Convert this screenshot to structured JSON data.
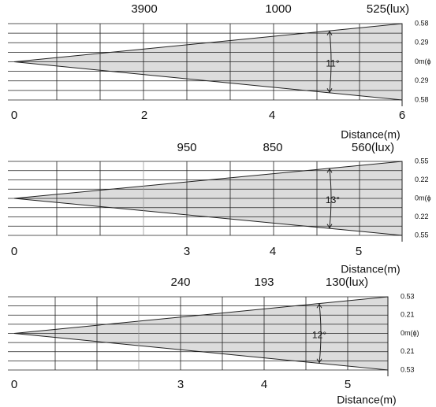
{
  "panels": [
    {
      "lux_labels": [
        "3900",
        "1000",
        "525(lux)"
      ],
      "side_labels": [
        "0.58",
        "0.29",
        "0m(ϕ",
        "0.29",
        "0.58"
      ],
      "distance_ticks": [
        "0",
        "2",
        "4",
        "6"
      ],
      "angle": "11°",
      "axis_title": "Distance(m)"
    },
    {
      "lux_labels": [
        "950",
        "850",
        "560(lux)"
      ],
      "side_labels": [
        "0.55",
        "0.22",
        "0m(ϕ",
        "0.22",
        "0.55"
      ],
      "distance_ticks": [
        "0",
        "3",
        "4",
        "5"
      ],
      "angle": "13°",
      "axis_title": "Distance(m)"
    },
    {
      "lux_labels": [
        "240",
        "193",
        "130(lux)"
      ],
      "side_labels": [
        "0.53",
        "0.21",
        "0m(ϕ)",
        "0.21",
        "0.53"
      ],
      "distance_ticks": [
        "0",
        "3",
        "4",
        "5"
      ],
      "angle": "12°",
      "axis_title": "Distance(m)"
    }
  ]
}
